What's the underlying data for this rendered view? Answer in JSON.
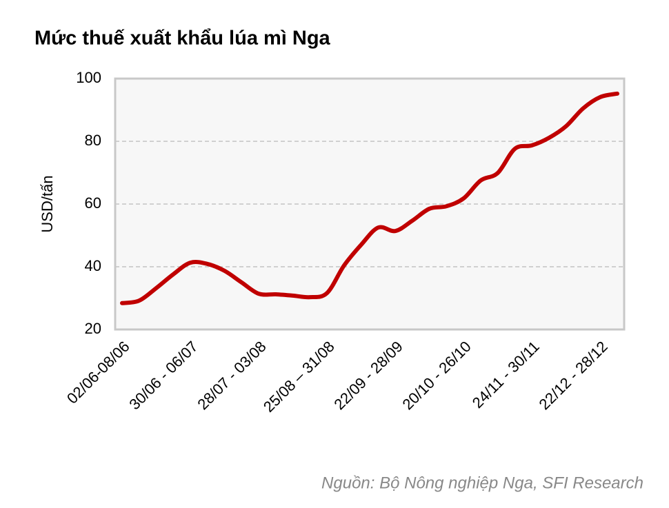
{
  "chart_data": {
    "type": "line",
    "title": "Mức thuế xuất khẩu lúa mì Nga",
    "y_label": "USD/tấn",
    "source": "Nguồn: Bộ Nông nghiệp Nga, SFI Research",
    "categories": [
      "02/06-08/06",
      null,
      null,
      null,
      "30/06 - 06/07",
      null,
      null,
      null,
      "28/07 - 03/08",
      null,
      null,
      null,
      "25/08 – 31/08",
      null,
      null,
      null,
      "22/09 - 28/09",
      null,
      null,
      null,
      "20/10 - 26/10",
      null,
      null,
      null,
      "24/11 - 30/11",
      null,
      null,
      null,
      "22/12 - 28/12",
      null
    ],
    "series": [
      {
        "color": "#c00000",
        "values": [
          28.4,
          29.2,
          33.2,
          37.6,
          41.3,
          40.9,
          38.7,
          35,
          31.4,
          31.2,
          30.8,
          30.3,
          31.6,
          40.4,
          47,
          52.5,
          51.4,
          54.7,
          58.5,
          59.3,
          61.8,
          67.5,
          69.9,
          77.6,
          78.7,
          81.1,
          84.8,
          90.5,
          94.1,
          95.2
        ]
      }
    ],
    "ylim": [
      20,
      100
    ],
    "yticks": [
      20,
      40,
      60,
      80,
      100
    ],
    "grid": true
  }
}
